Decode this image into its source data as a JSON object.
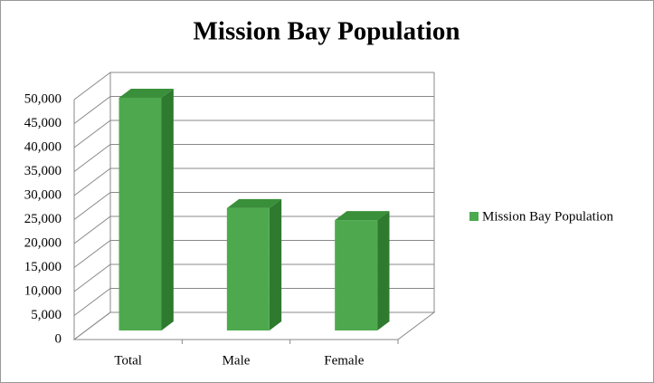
{
  "chart_data": {
    "type": "bar3d",
    "title": "Mission Bay Population",
    "categories": [
      "Total",
      "Male",
      "Female"
    ],
    "series": [
      {
        "name": "Mission Bay Population",
        "color": "#4ea94e",
        "values": [
          48500,
          25500,
          23000
        ]
      }
    ],
    "ylim": [
      0,
      50000
    ],
    "yticks": [
      0,
      {
        "value": 5000,
        "label": "5,000"
      },
      {
        "value": 10000,
        "label": "10,000"
      },
      {
        "value": 15000,
        "label": "15,000"
      },
      {
        "value": 20000,
        "label": "20,000"
      },
      {
        "value": 25000,
        "label": "25,000"
      },
      {
        "value": 30000,
        "label": "30,000"
      },
      {
        "value": 35000,
        "label": "35,000"
      },
      {
        "value": 40000,
        "label": "40,000"
      },
      {
        "value": 45000,
        "label": "45,000"
      },
      {
        "value": 50000,
        "label": "50,000"
      }
    ],
    "grid": true,
    "legend": "right"
  }
}
